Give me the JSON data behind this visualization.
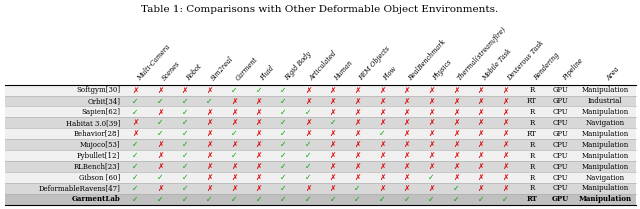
{
  "title": "Table 1: Comparisons with Other Deformable Object Environments.",
  "col_headers": [
    "Multi-Camera",
    "Scenes",
    "Robot",
    "Sim2real",
    "Garment",
    "Fluid",
    "Rigid Body",
    "Articulated",
    "Human",
    "FEM Objects",
    "Flow",
    "RealBenchmark",
    "Physics",
    "Thermal(stream/fire)",
    "Mobile Task",
    "Dexterous Task",
    "Rendering",
    "Pipeline",
    "Area"
  ],
  "rows": [
    {
      "name": "Softgym[30]",
      "bold": false,
      "checks": [
        0,
        0,
        0,
        0,
        1,
        1,
        1,
        0,
        0,
        0,
        0,
        0,
        0,
        0,
        0,
        0
      ],
      "rendering": "R",
      "pipeline": "GPU",
      "area": "Manipulation"
    },
    {
      "name": "Orbit[34]",
      "bold": false,
      "checks": [
        1,
        1,
        1,
        1,
        0,
        0,
        1,
        0,
        0,
        0,
        0,
        0,
        0,
        0,
        0,
        0
      ],
      "rendering": "RT",
      "pipeline": "GPU",
      "area": "Industrial"
    },
    {
      "name": "Sapien[62]",
      "bold": false,
      "checks": [
        1,
        0,
        1,
        0,
        0,
        0,
        1,
        1,
        0,
        0,
        0,
        0,
        0,
        0,
        0,
        0
      ],
      "rendering": "R",
      "pipeline": "CPU",
      "area": "Manipulation"
    },
    {
      "name": "Habitat 3.0[39]",
      "bold": false,
      "checks": [
        0,
        1,
        1,
        0,
        0,
        0,
        1,
        0,
        1,
        0,
        0,
        0,
        0,
        0,
        0,
        0
      ],
      "rendering": "R",
      "pipeline": "CPU",
      "area": "Navigation"
    },
    {
      "name": "Behavior[28]",
      "bold": false,
      "checks": [
        0,
        1,
        1,
        0,
        1,
        0,
        1,
        0,
        0,
        0,
        1,
        0,
        0,
        0,
        0,
        0
      ],
      "rendering": "RT",
      "pipeline": "GPU",
      "area": "Manipulation"
    },
    {
      "name": "Mujoco[53]",
      "bold": false,
      "checks": [
        1,
        0,
        1,
        0,
        0,
        0,
        1,
        1,
        0,
        0,
        0,
        0,
        0,
        0,
        0,
        0
      ],
      "rendering": "R",
      "pipeline": "CPU",
      "area": "Manipulation"
    },
    {
      "name": "Pybullet[12]",
      "bold": false,
      "checks": [
        1,
        0,
        1,
        0,
        1,
        0,
        1,
        1,
        0,
        0,
        0,
        0,
        0,
        0,
        0,
        0
      ],
      "rendering": "R",
      "pipeline": "CPU",
      "area": "Manipulation"
    },
    {
      "name": "RLBench[23]",
      "bold": false,
      "checks": [
        1,
        0,
        1,
        0,
        0,
        0,
        1,
        1,
        0,
        0,
        0,
        0,
        0,
        0,
        0,
        0
      ],
      "rendering": "R",
      "pipeline": "CPU",
      "area": "Manipulation"
    },
    {
      "name": "Gibson [60]",
      "bold": false,
      "checks": [
        1,
        1,
        1,
        0,
        0,
        0,
        1,
        1,
        0,
        0,
        0,
        0,
        1,
        0,
        0,
        0
      ],
      "rendering": "R",
      "pipeline": "CPU",
      "area": "Navigation"
    },
    {
      "name": "DeformableRavens[47]",
      "bold": false,
      "checks": [
        1,
        0,
        1,
        0,
        0,
        0,
        1,
        0,
        0,
        1,
        0,
        0,
        0,
        1,
        0,
        0
      ],
      "rendering": "R",
      "pipeline": "CPU",
      "area": "Manipulation"
    },
    {
      "name": "GarmentLab",
      "bold": true,
      "checks": [
        1,
        1,
        1,
        1,
        1,
        1,
        1,
        1,
        1,
        1,
        1,
        1,
        1,
        1,
        1,
        1
      ],
      "rendering": "RT",
      "pipeline": "GPU",
      "area": "Manipulation"
    }
  ],
  "check_color": "#00aa00",
  "cross_color": "#dd0000",
  "row_bg_even": "#d8d8d8",
  "row_bg_odd": "#f0f0f0",
  "last_row_bg": "#c0c0c0"
}
